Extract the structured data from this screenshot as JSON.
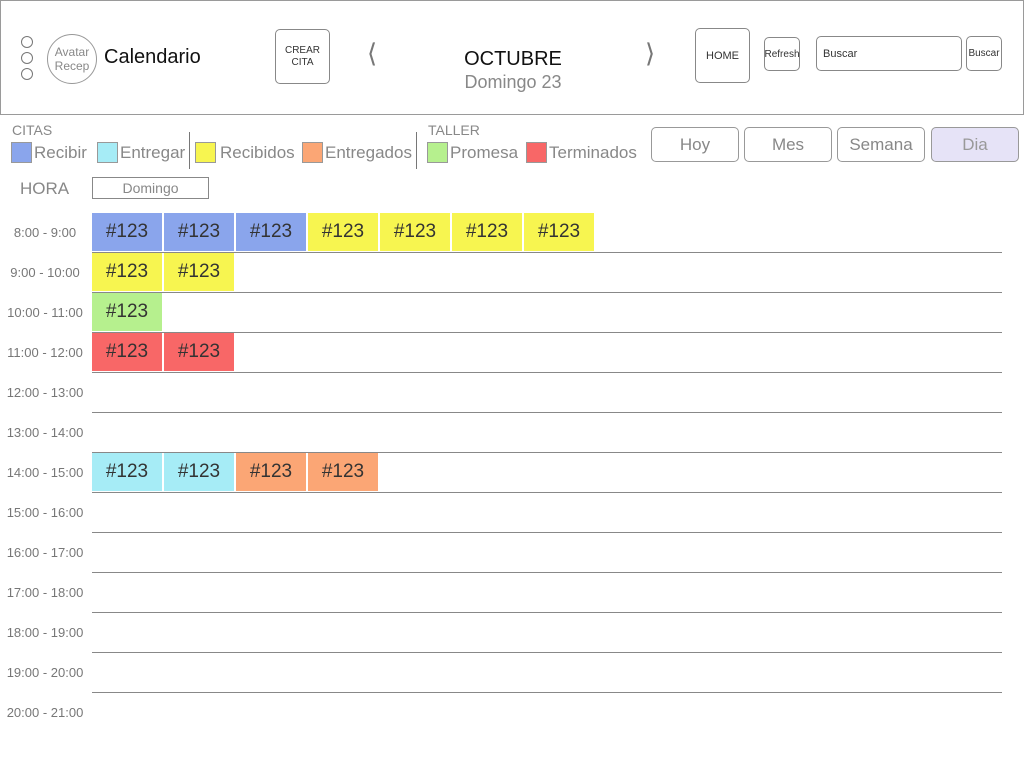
{
  "header": {
    "avatar_text": "Avatar Recep",
    "app_title": "Calendario",
    "create_label": "CREAR CITA",
    "month": "OCTUBRE",
    "day": "Domingo 23",
    "prev_icon": "⟨",
    "next_icon": "⟩",
    "home_label": "HOME",
    "refresh_label": "Refresh",
    "search_placeholder": "Buscar",
    "search_button": "Buscar"
  },
  "legend": {
    "citas_title": "CITAS",
    "taller_title": "TALLER",
    "items": [
      {
        "label": "Recibir",
        "color": "#8aa5ec"
      },
      {
        "label": "Entregar",
        "color": "#a6ecf6"
      },
      {
        "label": "Recibidos",
        "color": "#f7f550"
      },
      {
        "label": "Entregados",
        "color": "#fba675"
      },
      {
        "label": "Promesa",
        "color": "#b6f08e"
      },
      {
        "label": "Terminados",
        "color": "#f86767"
      }
    ]
  },
  "views": {
    "hoy": "Hoy",
    "mes": "Mes",
    "semana": "Semana",
    "dia": "Dia",
    "active": "Dia"
  },
  "grid": {
    "hora_label": "HORA",
    "column": "Domingo",
    "rows": [
      {
        "time": "8:00 - 9:00",
        "events": [
          {
            "label": "#123",
            "status": "Recibir"
          },
          {
            "label": "#123",
            "status": "Recibir"
          },
          {
            "label": "#123",
            "status": "Recibir"
          },
          {
            "label": "#123",
            "status": "Recibidos"
          },
          {
            "label": "#123",
            "status": "Recibidos"
          },
          {
            "label": "#123",
            "status": "Recibidos"
          },
          {
            "label": "#123",
            "status": "Recibidos"
          }
        ]
      },
      {
        "time": "9:00 - 10:00",
        "events": [
          {
            "label": "#123",
            "status": "Recibidos"
          },
          {
            "label": "#123",
            "status": "Recibidos"
          }
        ]
      },
      {
        "time": "10:00 - 11:00",
        "events": [
          {
            "label": "#123",
            "status": "Promesa"
          }
        ]
      },
      {
        "time": "11:00 - 12:00",
        "events": [
          {
            "label": "#123",
            "status": "Terminados"
          },
          {
            "label": "#123",
            "status": "Terminados"
          }
        ]
      },
      {
        "time": "12:00 - 13:00",
        "events": []
      },
      {
        "time": "13:00 - 14:00",
        "events": []
      },
      {
        "time": "14:00 - 15:00",
        "events": [
          {
            "label": "#123",
            "status": "Entregar"
          },
          {
            "label": "#123",
            "status": "Entregar"
          },
          {
            "label": "#123",
            "status": "Entregados"
          },
          {
            "label": "#123",
            "status": "Entregados"
          }
        ]
      },
      {
        "time": "15:00 - 16:00",
        "events": []
      },
      {
        "time": "16:00 - 17:00",
        "events": []
      },
      {
        "time": "17:00 - 18:00",
        "events": []
      },
      {
        "time": "18:00 - 19:00",
        "events": []
      },
      {
        "time": "19:00 - 20:00",
        "events": []
      },
      {
        "time": "20:00 - 21:00",
        "events": []
      }
    ]
  }
}
